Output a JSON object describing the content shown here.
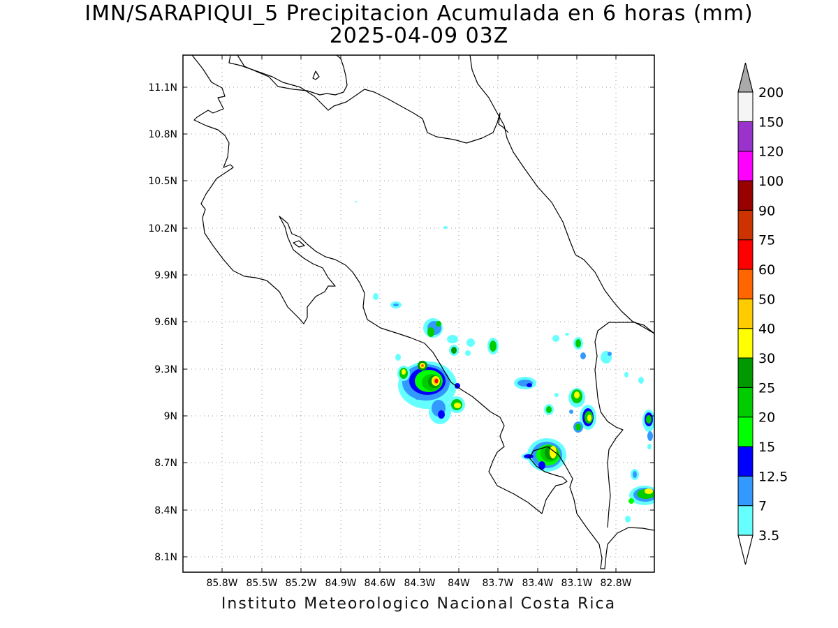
{
  "title_line1": "IMN/SARAPIQUI_5 Precipitacion Acumulada en 6 horas (mm)",
  "title_line2": "2025-04-09 03Z",
  "footer": "Instituto Meteorologico Nacional Costa Rica",
  "map": {
    "lon_range": [
      -86.0,
      -82.98
    ],
    "lat_range": [
      8.0,
      11.3
    ],
    "lon_ticks": [
      "85.8W",
      "85.5W",
      "85.2W",
      "84.9W",
      "84.6W",
      "84.3W",
      "84W",
      "83.7W",
      "83.4W",
      "83.1W",
      "82.8W"
    ],
    "lat_ticks": [
      "11.1N",
      "10.8N",
      "10.5N",
      "10.2N",
      "9.9N",
      "9.6N",
      "9.3N",
      "9N",
      "8.7N",
      "8.4N",
      "8.1N"
    ]
  },
  "colorbar": {
    "labels": [
      "3.5",
      "7",
      "12.5",
      "15",
      "20",
      "25",
      "30",
      "40",
      "50",
      "60",
      "75",
      "90",
      "100",
      "120",
      "150",
      "200"
    ],
    "colors": [
      "#ffffff",
      "#66ffff",
      "#3399ff",
      "#0000ff",
      "#00ff00",
      "#00cc00",
      "#009900",
      "#ffff00",
      "#ffcc00",
      "#ff6600",
      "#ff0000",
      "#cc3300",
      "#990000",
      "#ff00ff",
      "#9933cc",
      "#f5f5f5",
      "#aaaaaa"
    ]
  }
}
